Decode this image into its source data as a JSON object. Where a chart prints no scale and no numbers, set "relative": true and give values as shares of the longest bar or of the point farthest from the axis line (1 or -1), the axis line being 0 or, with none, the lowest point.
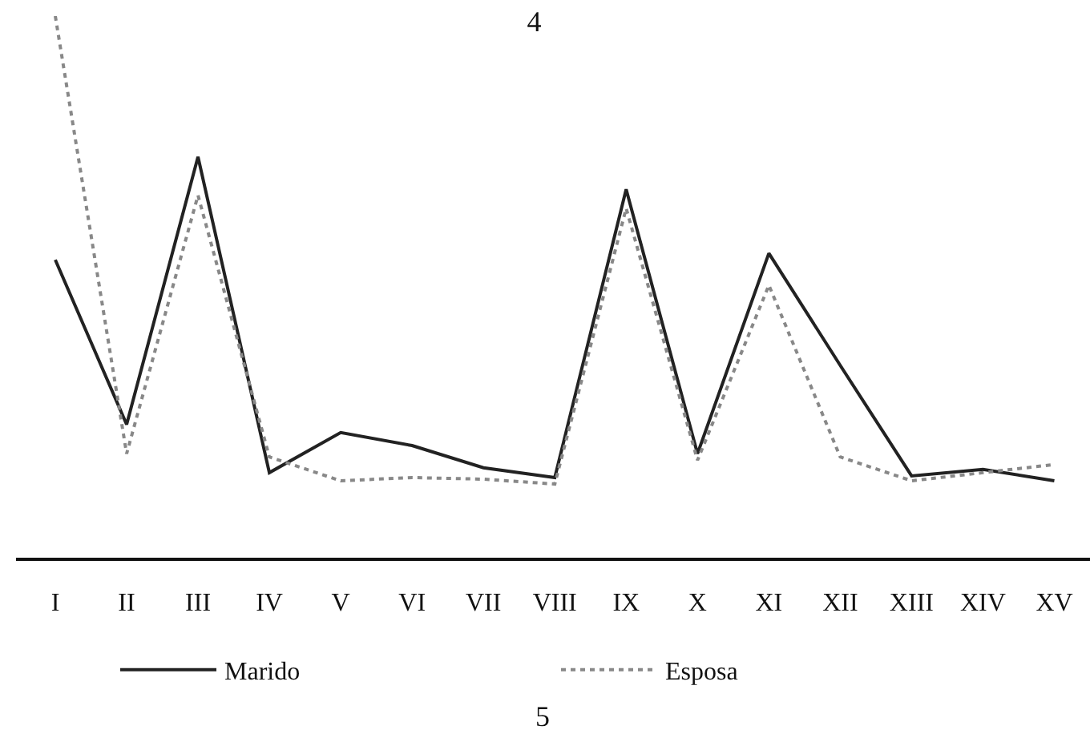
{
  "chart_data": {
    "type": "line",
    "title": "4",
    "relative": true,
    "categories": [
      "I",
      "II",
      "III",
      "IV",
      "V",
      "VI",
      "VII",
      "VIII",
      "IX",
      "X",
      "XI",
      "XII",
      "XIII",
      "XIV",
      "XV"
    ],
    "series": [
      {
        "name": "Marido",
        "color": "#222222",
        "line_style": "solid",
        "values": [
          0.55,
          0.246,
          0.74,
          0.157,
          0.231,
          0.207,
          0.166,
          0.148,
          0.68,
          0.192,
          0.562,
          0.355,
          0.151,
          0.163,
          0.142
        ]
      },
      {
        "name": "Esposa",
        "color": "#888888",
        "line_style": "dotted",
        "values": [
          1.0,
          0.192,
          0.669,
          0.186,
          0.142,
          0.148,
          0.145,
          0.136,
          0.645,
          0.18,
          0.503,
          0.186,
          0.142,
          0.157,
          0.172
        ]
      }
    ],
    "annotations": [
      "5"
    ],
    "legend": "bottom"
  }
}
